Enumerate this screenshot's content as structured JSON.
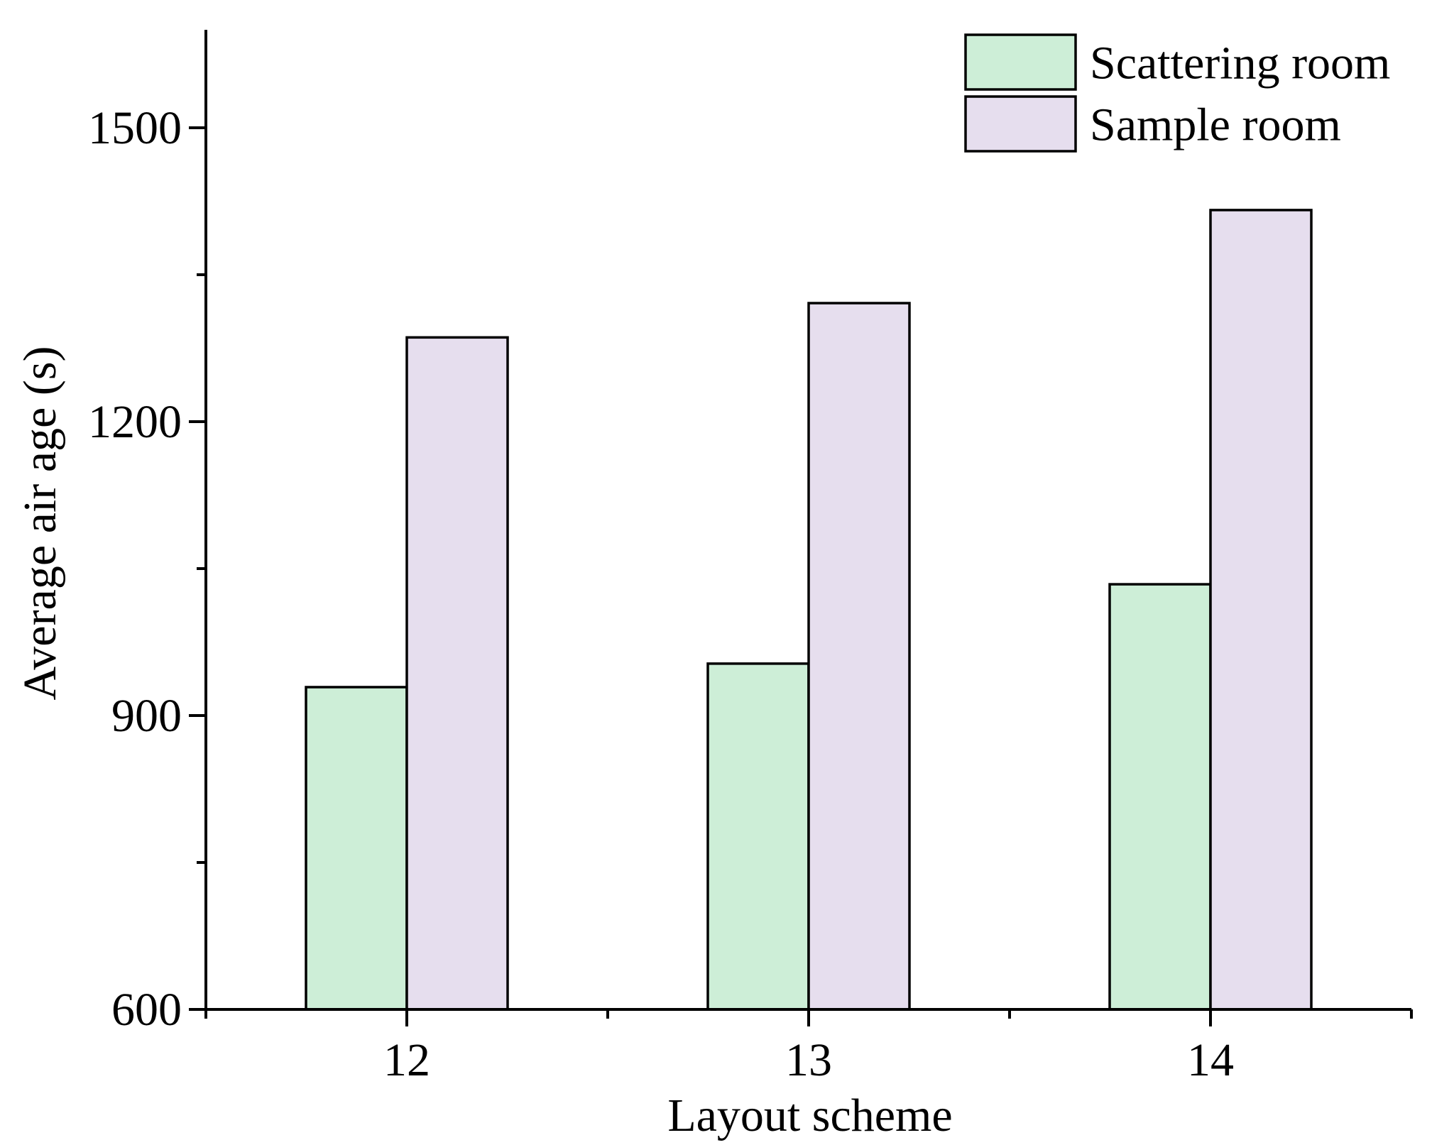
{
  "chart_data": {
    "type": "bar",
    "title": "",
    "xlabel": "Layout scheme",
    "ylabel": "Average air age (s)",
    "categories": [
      "12",
      "13",
      "14"
    ],
    "ylim": [
      600,
      1600
    ],
    "yticks": [
      600,
      900,
      1200,
      1500
    ],
    "y_tick_labels": [
      "600",
      "900",
      "1200",
      "1500"
    ],
    "grid": false,
    "legend_position": "top-right",
    "series": [
      {
        "name": "Scattering room",
        "color": "#cdeed7",
        "values": [
          929,
          953,
          1034
        ]
      },
      {
        "name": "Sample room",
        "color": "#e6deee",
        "values": [
          1286,
          1321,
          1416
        ]
      }
    ]
  }
}
